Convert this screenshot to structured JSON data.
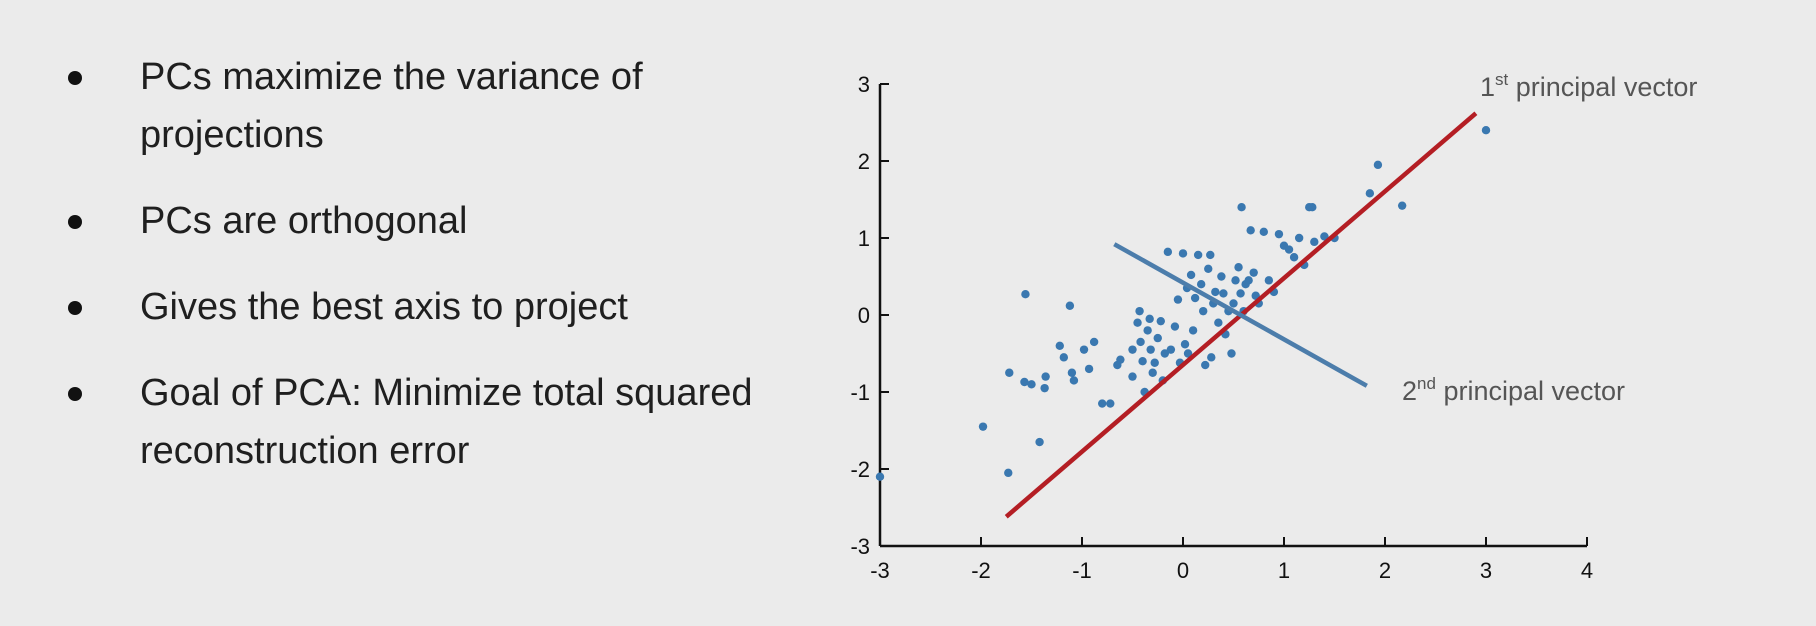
{
  "bullets": [
    "PCs maximize the variance of projections",
    "PCs are orthogonal",
    "Gives the best axis to project",
    "Goal of PCA: Minimize total squared reconstruction error"
  ],
  "chart_data": {
    "type": "scatter",
    "xlim": [
      -3,
      4
    ],
    "ylim": [
      -3,
      3
    ],
    "xticks": [
      -3,
      -2,
      -1,
      0,
      1,
      2,
      3,
      4
    ],
    "yticks": [
      -3,
      -2,
      -1,
      0,
      1,
      2,
      3
    ],
    "grid": false,
    "point_color": "#3a78b0",
    "points": [
      [
        -3.0,
        -2.1
      ],
      [
        -1.98,
        -1.45
      ],
      [
        -1.73,
        -2.05
      ],
      [
        -1.72,
        -0.75
      ],
      [
        -1.56,
        0.27
      ],
      [
        -1.57,
        -0.87
      ],
      [
        -1.5,
        -0.9
      ],
      [
        -1.42,
        -1.65
      ],
      [
        -1.36,
        -0.8
      ],
      [
        -1.37,
        -0.95
      ],
      [
        -1.12,
        0.12
      ],
      [
        -1.22,
        -0.4
      ],
      [
        -1.18,
        -0.55
      ],
      [
        -1.1,
        -0.75
      ],
      [
        -1.08,
        -0.85
      ],
      [
        -0.98,
        -0.45
      ],
      [
        -0.93,
        -0.7
      ],
      [
        -0.88,
        -0.35
      ],
      [
        -0.8,
        -1.15
      ],
      [
        -0.72,
        -1.15
      ],
      [
        -0.65,
        -0.65
      ],
      [
        -0.62,
        -0.58
      ],
      [
        -0.5,
        -0.8
      ],
      [
        -0.5,
        -0.45
      ],
      [
        -0.45,
        -0.1
      ],
      [
        -0.43,
        0.05
      ],
      [
        -0.42,
        -0.35
      ],
      [
        -0.4,
        -0.6
      ],
      [
        -0.38,
        -1.0
      ],
      [
        -0.35,
        -0.2
      ],
      [
        -0.33,
        -0.05
      ],
      [
        -0.32,
        -0.45
      ],
      [
        -0.3,
        -0.75
      ],
      [
        -0.28,
        -0.62
      ],
      [
        -0.25,
        -0.3
      ],
      [
        -0.22,
        -0.08
      ],
      [
        -0.2,
        -0.85
      ],
      [
        -0.18,
        -0.5
      ],
      [
        -0.15,
        0.82
      ],
      [
        -0.12,
        -0.45
      ],
      [
        -0.08,
        -0.15
      ],
      [
        -0.05,
        0.2
      ],
      [
        -0.03,
        -0.62
      ],
      [
        0.0,
        0.8
      ],
      [
        0.02,
        -0.38
      ],
      [
        0.04,
        0.35
      ],
      [
        0.05,
        -0.5
      ],
      [
        0.08,
        0.52
      ],
      [
        0.1,
        -0.2
      ],
      [
        0.12,
        0.22
      ],
      [
        0.15,
        0.78
      ],
      [
        0.18,
        0.4
      ],
      [
        0.2,
        0.05
      ],
      [
        0.22,
        -0.65
      ],
      [
        0.25,
        0.6
      ],
      [
        0.27,
        0.78
      ],
      [
        0.28,
        -0.55
      ],
      [
        0.3,
        0.15
      ],
      [
        0.32,
        0.3
      ],
      [
        0.35,
        -0.1
      ],
      [
        0.38,
        0.5
      ],
      [
        0.4,
        0.28
      ],
      [
        0.42,
        -0.25
      ],
      [
        0.45,
        0.05
      ],
      [
        0.48,
        -0.5
      ],
      [
        0.5,
        0.15
      ],
      [
        0.52,
        0.45
      ],
      [
        0.55,
        0.62
      ],
      [
        0.57,
        0.28
      ],
      [
        0.58,
        1.4
      ],
      [
        0.6,
        0.05
      ],
      [
        0.62,
        0.4
      ],
      [
        0.65,
        0.45
      ],
      [
        0.67,
        1.1
      ],
      [
        0.7,
        0.55
      ],
      [
        0.72,
        0.25
      ],
      [
        0.75,
        0.15
      ],
      [
        0.8,
        1.08
      ],
      [
        0.85,
        0.45
      ],
      [
        0.9,
        0.3
      ],
      [
        0.95,
        1.05
      ],
      [
        1.0,
        0.9
      ],
      [
        1.05,
        0.85
      ],
      [
        1.1,
        0.75
      ],
      [
        1.15,
        1.0
      ],
      [
        1.2,
        0.65
      ],
      [
        1.25,
        1.4
      ],
      [
        1.28,
        1.4
      ],
      [
        1.3,
        0.95
      ],
      [
        1.4,
        1.02
      ],
      [
        1.5,
        1.0
      ],
      [
        1.85,
        1.58
      ],
      [
        1.93,
        1.95
      ],
      [
        2.17,
        1.42
      ],
      [
        3.0,
        2.4
      ]
    ],
    "principal_vectors": [
      {
        "name": "1st principal vector",
        "color": "#b41e24",
        "from": [
          -1.75,
          -2.62
        ],
        "to": [
          2.9,
          2.62
        ]
      },
      {
        "name": "2nd principal vector",
        "color": "#4c7dab",
        "from": [
          -0.68,
          0.92
        ],
        "to": [
          1.82,
          -0.92
        ]
      }
    ],
    "labels": {
      "pc1": {
        "pre": "1",
        "sup": "st",
        "post": " principal vector"
      },
      "pc2": {
        "pre": "2",
        "sup": "nd",
        "post": " principal vector"
      }
    }
  }
}
